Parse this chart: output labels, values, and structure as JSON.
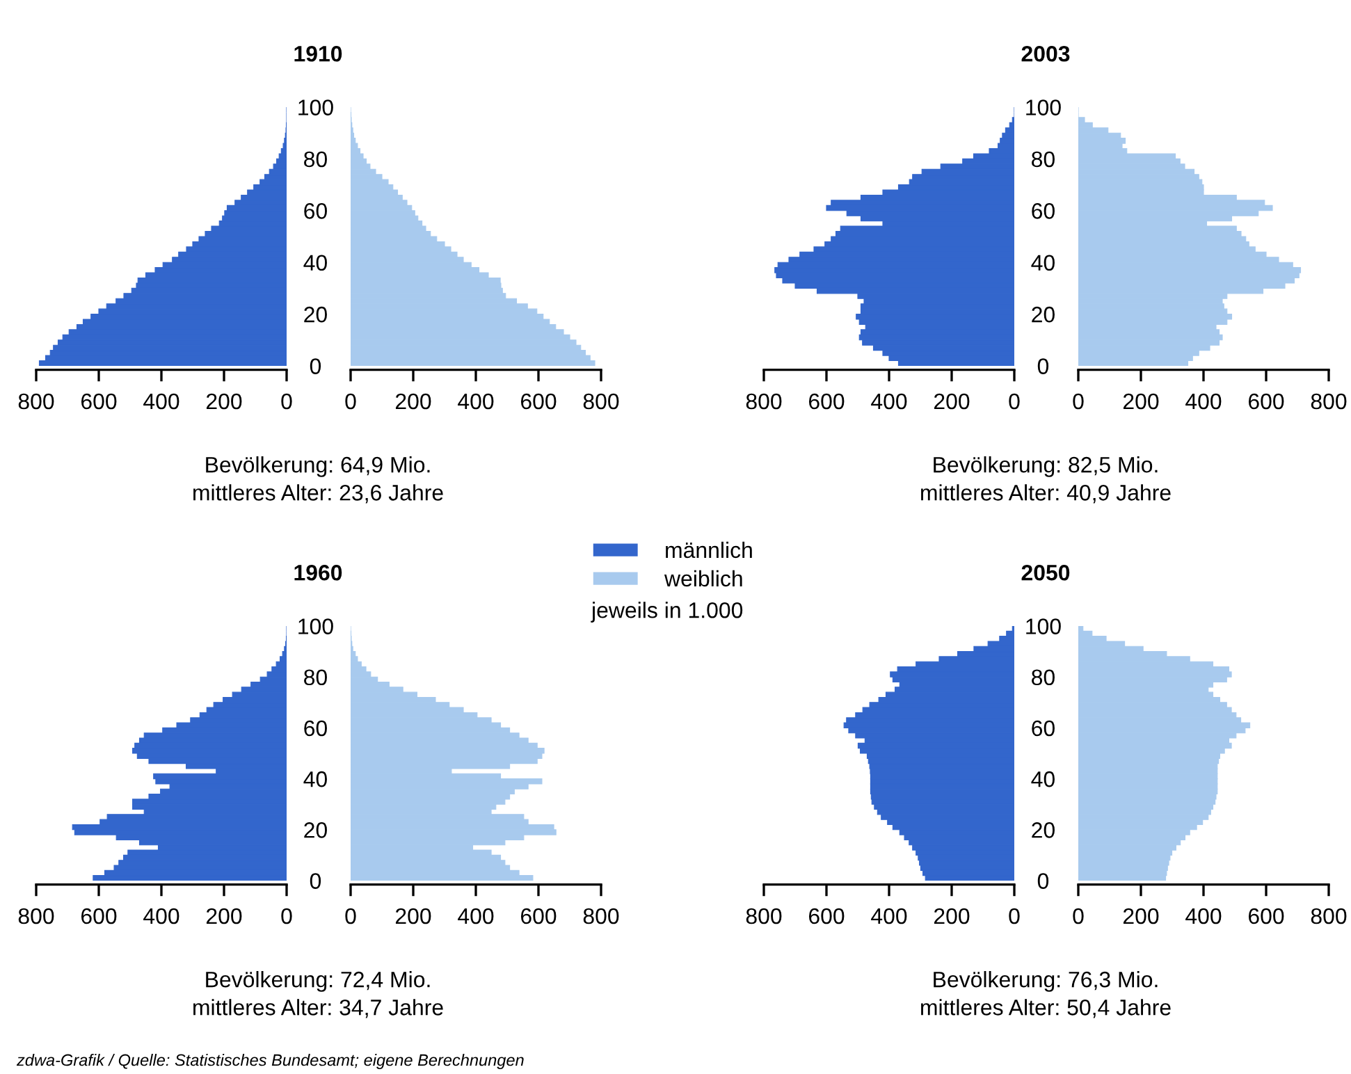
{
  "chart_data": [
    {
      "type": "bar",
      "orientation": "horizontal",
      "title": "1910",
      "annotations": [
        "Bevölkerung: 64,9 Mio.\nmittleres Alter: 23,6 Jahre"
      ],
      "x": [
        0,
        2,
        4,
        6,
        8,
        10,
        12,
        14,
        16,
        18,
        20,
        22,
        24,
        26,
        28,
        30,
        32,
        34,
        36,
        38,
        40,
        42,
        44,
        46,
        48,
        50,
        52,
        54,
        56,
        58,
        60,
        62,
        64,
        66,
        68,
        70,
        72,
        74,
        76,
        78,
        80,
        82,
        84,
        86,
        88,
        90,
        92,
        94,
        96,
        98
      ],
      "xlim": [
        800,
        0
      ],
      "xticks": [
        800,
        600,
        400,
        200,
        0
      ],
      "ylim": [
        0,
        100
      ],
      "yticks": [
        0,
        20,
        40,
        60,
        80,
        100
      ],
      "tick_labels": "x",
      "series": [
        {
          "color": "#3366cc",
          "values": [
            790,
            770,
            755,
            745,
            730,
            715,
            695,
            670,
            650,
            625,
            600,
            575,
            545,
            520,
            495,
            480,
            475,
            450,
            420,
            395,
            365,
            345,
            320,
            300,
            280,
            260,
            240,
            215,
            205,
            198,
            190,
            165,
            145,
            125,
            105,
            85,
            70,
            55,
            42,
            32,
            24,
            17,
            11,
            7,
            4,
            2,
            1,
            0,
            0,
            0
          ]
        }
      ]
    },
    {
      "type": "bar",
      "orientation": "horizontal",
      "x": [
        0,
        2,
        4,
        6,
        8,
        10,
        12,
        14,
        16,
        18,
        20,
        22,
        24,
        26,
        28,
        30,
        32,
        34,
        36,
        38,
        40,
        42,
        44,
        46,
        48,
        50,
        52,
        54,
        56,
        58,
        60,
        62,
        64,
        66,
        68,
        70,
        72,
        74,
        76,
        78,
        80,
        82,
        84,
        86,
        88,
        90,
        92,
        94,
        96,
        98
      ],
      "xlim": [
        0,
        800
      ],
      "xticks": [
        0,
        200,
        400,
        600,
        800
      ],
      "ylim": [
        0,
        100
      ],
      "yticks": [
        0,
        20,
        40,
        60,
        80,
        100
      ],
      "series": [
        {
          "color": "#a8caee",
          "values": [
            780,
            765,
            750,
            735,
            720,
            700,
            680,
            655,
            635,
            615,
            595,
            565,
            530,
            495,
            485,
            480,
            478,
            440,
            410,
            385,
            360,
            340,
            320,
            300,
            275,
            255,
            240,
            228,
            215,
            205,
            195,
            180,
            165,
            150,
            135,
            120,
            100,
            80,
            62,
            50,
            40,
            30,
            22,
            15,
            10,
            7,
            4,
            2,
            1,
            0
          ]
        }
      ]
    },
    {
      "type": "bar",
      "orientation": "horizontal",
      "title": "2003",
      "annotations": [
        "Bevölkerung: 82,5 Mio.\nmittleres Alter: 40,9 Jahre"
      ],
      "x": [
        0,
        2,
        4,
        6,
        8,
        10,
        12,
        14,
        16,
        18,
        20,
        22,
        24,
        26,
        28,
        30,
        32,
        34,
        36,
        38,
        40,
        42,
        44,
        46,
        48,
        50,
        52,
        54,
        56,
        58,
        60,
        62,
        64,
        66,
        68,
        70,
        72,
        74,
        76,
        78,
        80,
        82,
        84,
        86,
        88,
        90,
        92,
        94,
        96,
        98
      ],
      "xlim": [
        800,
        0
      ],
      "xticks": [
        800,
        600,
        400,
        200,
        0
      ],
      "ylim": [
        0,
        100
      ],
      "yticks": [
        0,
        20,
        40,
        60,
        80,
        100
      ],
      "tick_labels": "x",
      "series": [
        {
          "color": "#3366cc",
          "values": [
            370,
            400,
            420,
            450,
            485,
            495,
            490,
            475,
            495,
            505,
            490,
            490,
            480,
            500,
            630,
            700,
            740,
            760,
            765,
            755,
            720,
            685,
            640,
            605,
            585,
            570,
            555,
            420,
            490,
            535,
            600,
            585,
            490,
            420,
            370,
            335,
            325,
            295,
            235,
            165,
            130,
            80,
            52,
            45,
            38,
            28,
            15,
            6,
            0,
            0
          ]
        }
      ]
    },
    {
      "type": "bar",
      "orientation": "horizontal",
      "x": [
        0,
        2,
        4,
        6,
        8,
        10,
        12,
        14,
        16,
        18,
        20,
        22,
        24,
        26,
        28,
        30,
        32,
        34,
        36,
        38,
        40,
        42,
        44,
        46,
        48,
        50,
        52,
        54,
        56,
        58,
        60,
        62,
        64,
        66,
        68,
        70,
        72,
        74,
        76,
        78,
        80,
        82,
        84,
        86,
        88,
        90,
        92,
        94,
        96,
        98
      ],
      "xlim": [
        0,
        800
      ],
      "xticks": [
        0,
        200,
        400,
        600,
        800
      ],
      "ylim": [
        0,
        100
      ],
      "yticks": [
        0,
        20,
        40,
        60,
        80,
        100
      ],
      "series": [
        {
          "color": "#a8caee",
          "values": [
            350,
            365,
            385,
            420,
            450,
            460,
            450,
            440,
            475,
            490,
            475,
            465,
            460,
            475,
            590,
            660,
            690,
            705,
            710,
            685,
            640,
            600,
            565,
            545,
            535,
            520,
            505,
            410,
            490,
            575,
            620,
            595,
            505,
            400,
            400,
            395,
            385,
            370,
            340,
            325,
            310,
            155,
            140,
            150,
            135,
            95,
            45,
            20,
            0,
            0
          ]
        }
      ]
    },
    {
      "type": "bar",
      "orientation": "horizontal",
      "title": "1960",
      "legend": "top right",
      "annotations": [
        "Bevölkerung: 72,4 Mio.\nmittleres Alter: 34,7 Jahre",
        "jeweils in 1.000"
      ],
      "x": [
        0,
        2,
        4,
        6,
        8,
        10,
        12,
        14,
        16,
        18,
        20,
        22,
        24,
        26,
        28,
        30,
        32,
        34,
        36,
        38,
        40,
        42,
        44,
        46,
        48,
        50,
        52,
        54,
        56,
        58,
        60,
        62,
        64,
        66,
        68,
        70,
        72,
        74,
        76,
        78,
        80,
        82,
        84,
        86,
        88,
        90,
        92,
        94,
        96,
        98
      ],
      "xlim": [
        800,
        0
      ],
      "xticks": [
        800,
        600,
        400,
        200,
        0
      ],
      "ylim": [
        0,
        100
      ],
      "yticks": [
        0,
        20,
        40,
        60,
        80,
        100
      ],
      "tick_labels": "x",
      "series": [
        {
          "name": "männlich",
          "color": "#3366cc",
          "values": [
            618,
            581,
            551,
            536,
            521,
            507,
            410,
            470,
            544,
            677,
            684,
            596,
            573,
            455,
            492,
            492,
            440,
            403,
            373,
            418,
            425,
            225,
            321,
            440,
            477,
            492,
            485,
            470,
            455,
            396,
            351,
            307,
            277,
            255,
            233,
            203,
            173,
            144,
            114,
            84,
            62,
            47,
            33,
            21,
            13,
            7,
            3,
            1,
            0,
            0
          ]
        }
      ]
    },
    {
      "type": "bar",
      "orientation": "horizontal",
      "legend": "top right",
      "x": [
        0,
        2,
        4,
        6,
        8,
        10,
        12,
        14,
        16,
        18,
        20,
        22,
        24,
        26,
        28,
        30,
        32,
        34,
        36,
        38,
        40,
        42,
        44,
        46,
        48,
        50,
        52,
        54,
        56,
        58,
        60,
        62,
        64,
        66,
        68,
        70,
        72,
        74,
        76,
        78,
        80,
        82,
        84,
        86,
        88,
        90,
        92,
        94,
        96,
        98
      ],
      "xlim": [
        0,
        800
      ],
      "xticks": [
        0,
        200,
        400,
        600,
        800
      ],
      "ylim": [
        0,
        100
      ],
      "yticks": [
        0,
        20,
        40,
        60,
        80,
        100
      ],
      "series": [
        {
          "name": "weiblich",
          "color": "#a8caee",
          "values": [
            582,
            538,
            508,
            493,
            479,
            449,
            390,
            493,
            553,
            656,
            649,
            567,
            553,
            449,
            464,
            493,
            508,
            523,
            567,
            611,
            479,
            322,
            508,
            596,
            611,
            618,
            596,
            567,
            538,
            508,
            479,
            449,
            404,
            360,
            315,
            271,
            212,
            167,
            123,
            86,
            64,
            49,
            34,
            22,
            15,
            7,
            4,
            2,
            1,
            0
          ]
        }
      ]
    },
    {
      "type": "bar",
      "orientation": "horizontal",
      "title": "2050",
      "annotations": [
        "Bevölkerung: 76,3 Mio.\nmittleres Alter: 50,4 Jahre",
        "zdwa-Grafik / Quelle: Statistisches Bundesamt; eigene Berechnungen"
      ],
      "x": [
        0,
        2,
        4,
        6,
        8,
        10,
        12,
        14,
        16,
        18,
        20,
        22,
        24,
        26,
        28,
        30,
        32,
        34,
        36,
        38,
        40,
        42,
        44,
        46,
        48,
        50,
        52,
        54,
        56,
        58,
        60,
        62,
        64,
        66,
        68,
        70,
        72,
        74,
        76,
        78,
        80,
        82,
        84,
        86,
        88,
        90,
        92,
        94,
        96,
        98
      ],
      "xlim": [
        800,
        0
      ],
      "xticks": [
        800,
        600,
        400,
        200,
        0
      ],
      "ylim": [
        0,
        100
      ],
      "yticks": [
        0,
        20,
        40,
        60,
        80,
        100
      ],
      "tick_labels": "x",
      "series": [
        {
          "color": "#3366cc",
          "values": [
            284,
            292,
            299,
            303,
            307,
            314,
            325,
            336,
            351,
            366,
            388,
            405,
            425,
            437,
            447,
            455,
            457,
            459,
            459,
            459,
            459,
            460,
            462,
            466,
            470,
            492,
            499,
            477,
            507,
            529,
            544,
            536,
            507,
            484,
            462,
            433,
            410,
            381,
            366,
            388,
            396,
            373,
            314,
            240,
            181,
            129,
            84,
            47,
            25,
            6
          ]
        }
      ]
    },
    {
      "type": "bar",
      "orientation": "horizontal",
      "x": [
        0,
        2,
        4,
        6,
        8,
        10,
        12,
        14,
        16,
        18,
        20,
        22,
        24,
        26,
        28,
        30,
        32,
        34,
        36,
        38,
        40,
        42,
        44,
        46,
        48,
        50,
        52,
        54,
        56,
        58,
        60,
        62,
        64,
        66,
        68,
        70,
        72,
        74,
        76,
        78,
        80,
        82,
        84,
        86,
        88,
        90,
        92,
        94,
        96,
        98
      ],
      "xlim": [
        0,
        800
      ],
      "xticks": [
        0,
        200,
        400,
        600,
        800
      ],
      "ylim": [
        0,
        100
      ],
      "yticks": [
        0,
        20,
        40,
        60,
        80,
        100
      ],
      "series": [
        {
          "color": "#a8caee",
          "values": [
            279,
            282,
            285,
            289,
            293,
            299,
            312,
            326,
            341,
            356,
            378,
            397,
            415,
            423,
            430,
            437,
            440,
            444,
            444,
            444,
            444,
            444,
            444,
            448,
            452,
            467,
            489,
            481,
            504,
            533,
            548,
            519,
            504,
            489,
            474,
            452,
            430,
            415,
            430,
            474,
            489,
            481,
            430,
            356,
            282,
            207,
            148,
            89,
            44,
            15
          ]
        }
      ]
    }
  ]
}
